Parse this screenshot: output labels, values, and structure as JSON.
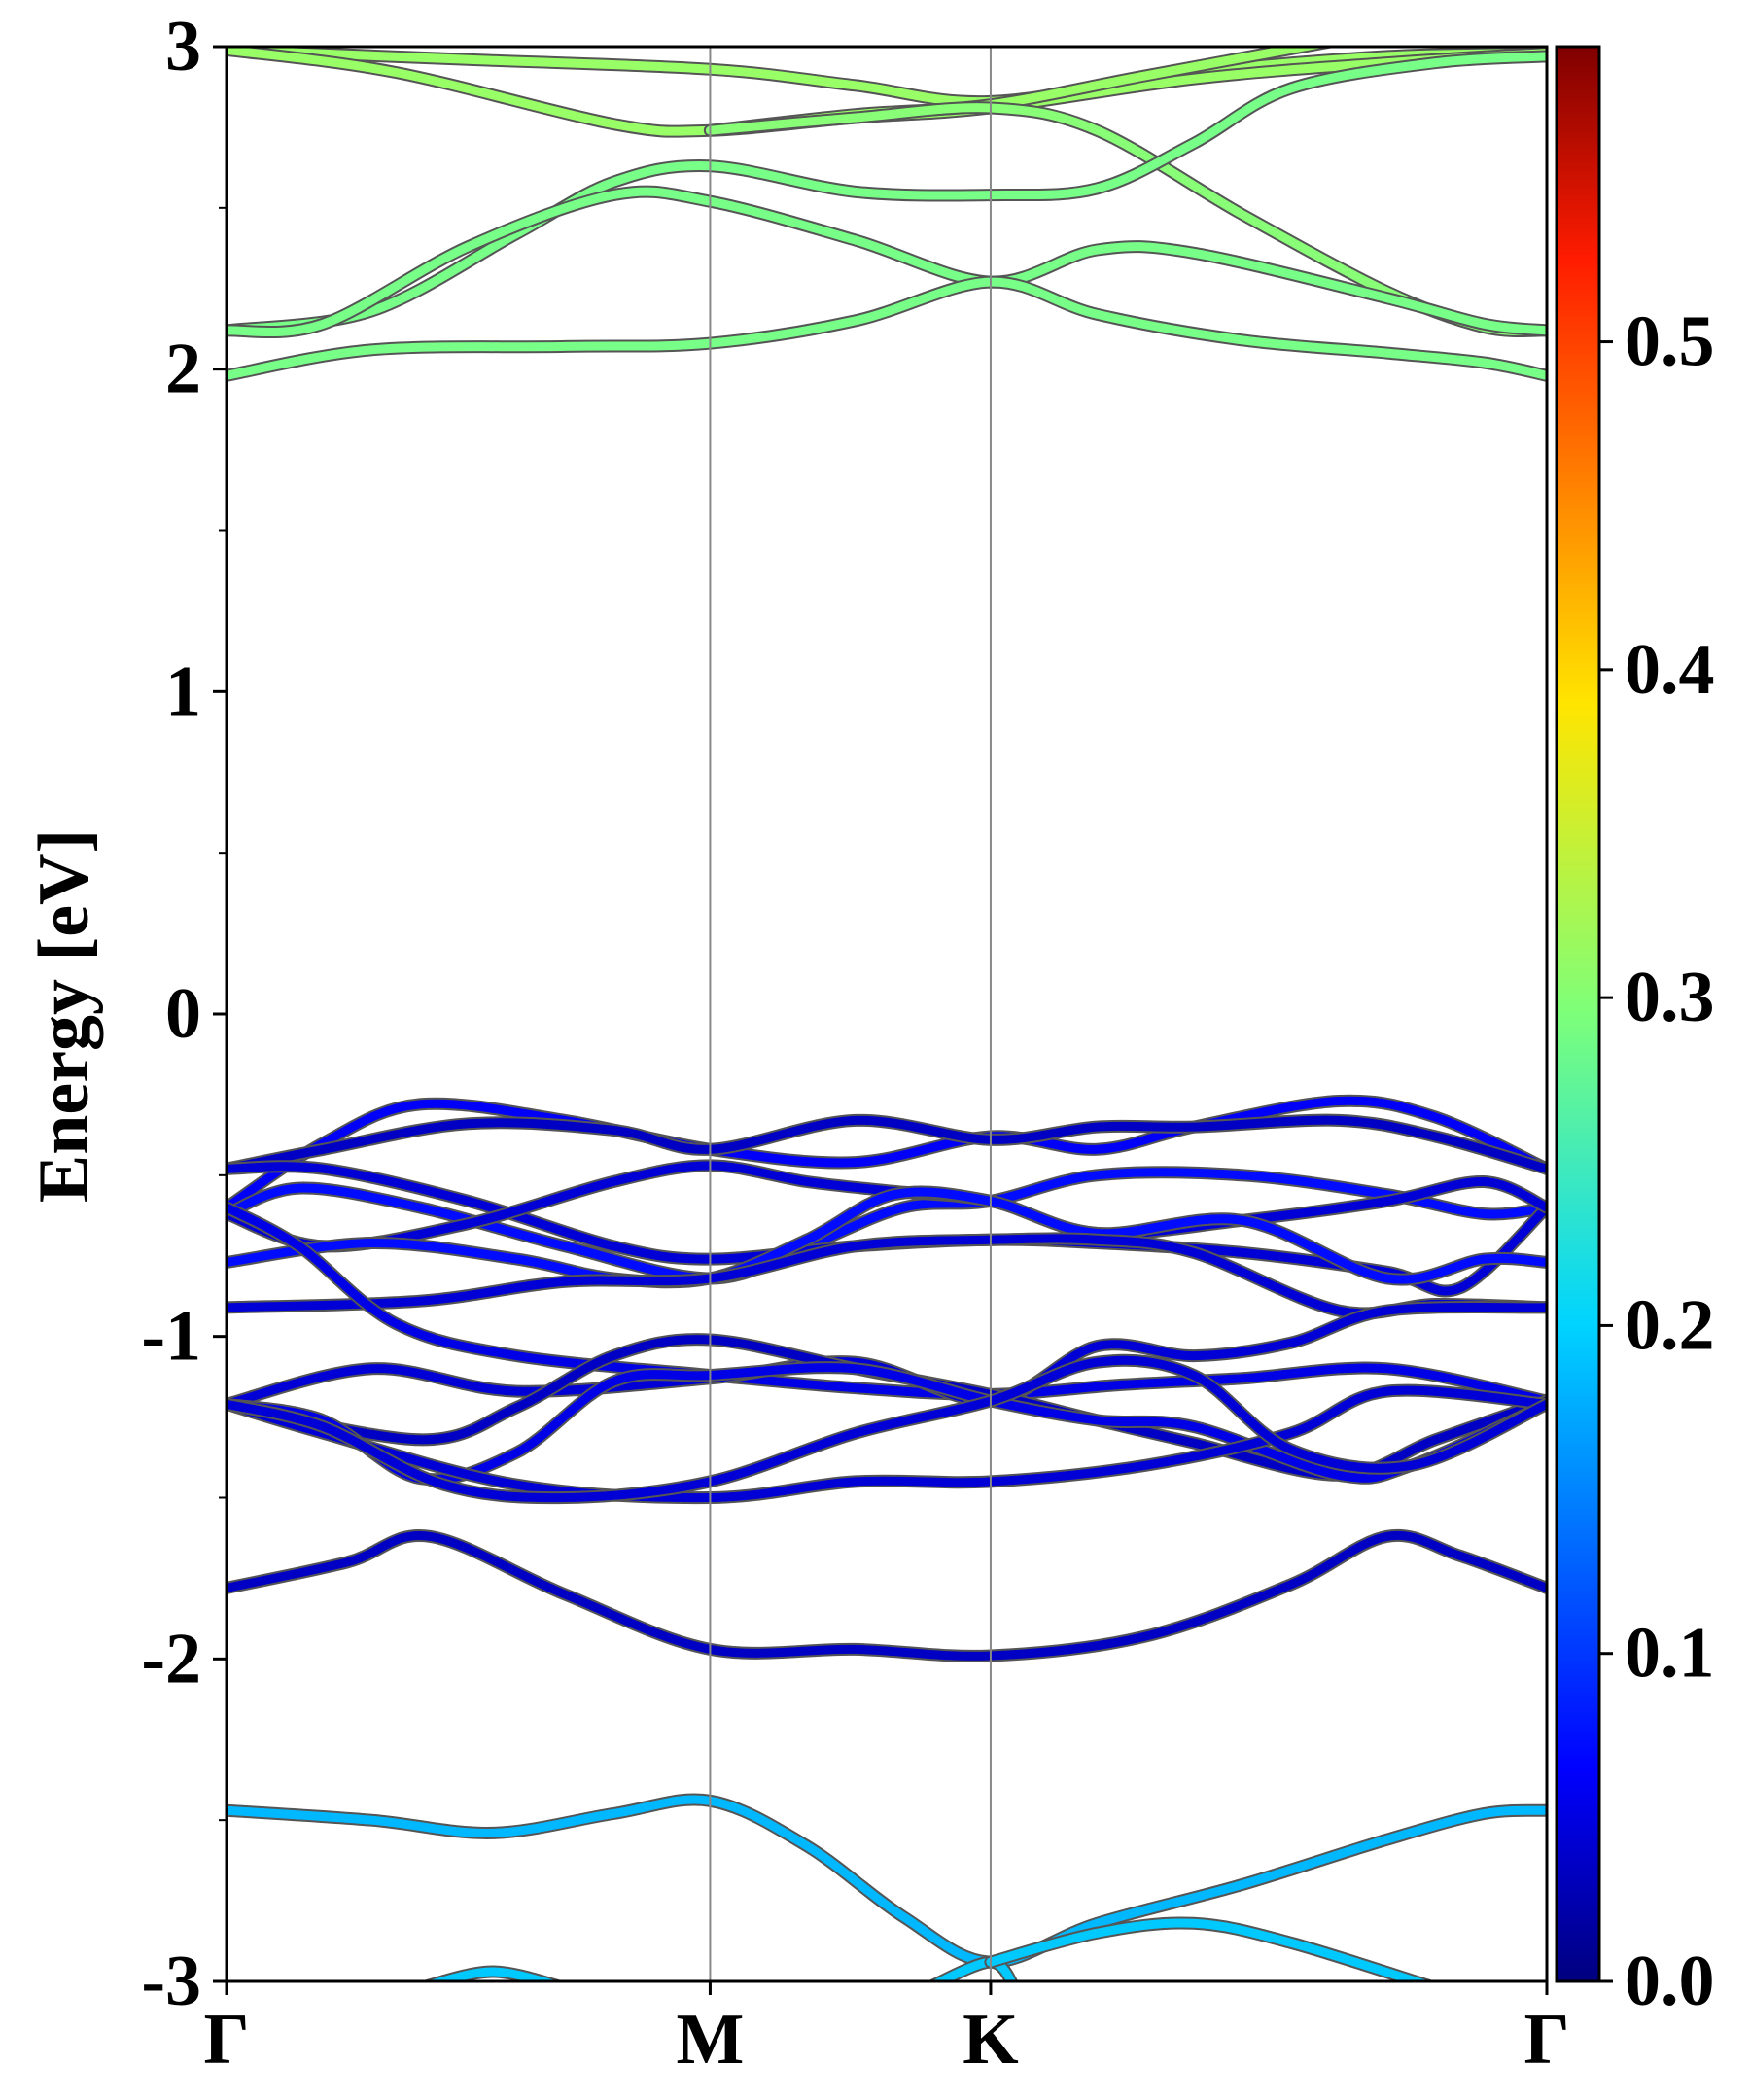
{
  "chart_data": {
    "type": "line",
    "ylabel": "Energy [eV]",
    "ylim": [
      -3,
      3
    ],
    "y_ticks": [
      -3,
      -2,
      -1,
      0,
      1,
      2,
      3
    ],
    "y_tick_labels": [
      "-3",
      "-2",
      "-1",
      "0",
      "1",
      "2",
      "3"
    ],
    "k_path_ticks": [
      {
        "label": "Γ",
        "k": 0.0
      },
      {
        "label": "M",
        "k": 1.0
      },
      {
        "label": "K",
        "k": 1.58
      },
      {
        "label": "Γ",
        "k": 2.73
      }
    ],
    "k_range": [
      0,
      2.73
    ],
    "colorbar": {
      "range": [
        0.0,
        0.59
      ],
      "ticks": [
        0.0,
        0.1,
        0.2,
        0.3,
        0.4,
        0.5
      ],
      "tick_labels": [
        "0.0",
        "0.1",
        "0.2",
        "0.3",
        "0.4",
        "0.5"
      ],
      "colormap": "jet"
    },
    "series": [
      {
        "weight": 0.31,
        "points": [
          [
            0,
            2.99
          ],
          [
            0.5,
            2.96
          ],
          [
            1.0,
            2.93
          ],
          [
            1.3,
            2.88
          ],
          [
            1.58,
            2.83
          ],
          [
            2.0,
            2.92
          ],
          [
            2.4,
            2.97
          ],
          [
            2.73,
            2.98
          ]
        ]
      },
      {
        "weight": 0.31,
        "points": [
          [
            0,
            2.99
          ],
          [
            0.35,
            2.92
          ],
          [
            0.8,
            2.76
          ],
          [
            1.0,
            2.74
          ],
          [
            1.3,
            2.78
          ],
          [
            1.58,
            2.81
          ],
          [
            2.0,
            2.9
          ],
          [
            2.4,
            2.95
          ],
          [
            2.73,
            2.98
          ]
        ]
      },
      {
        "weight": 0.31,
        "points": [
          [
            1.0,
            2.74
          ],
          [
            1.3,
            2.79
          ],
          [
            1.58,
            2.82
          ],
          [
            1.9,
            2.91
          ],
          [
            2.3,
            3.02
          ]
        ]
      },
      {
        "weight": 0.3,
        "points": [
          [
            1.0,
            2.74
          ],
          [
            1.3,
            2.78
          ],
          [
            1.58,
            2.81
          ],
          [
            1.8,
            2.74
          ],
          [
            2.1,
            2.48
          ],
          [
            2.4,
            2.24
          ],
          [
            2.6,
            2.13
          ],
          [
            2.73,
            2.12
          ]
        ]
      },
      {
        "weight": 0.29,
        "points": [
          [
            0,
            2.12
          ],
          [
            0.3,
            2.18
          ],
          [
            0.6,
            2.42
          ],
          [
            0.8,
            2.58
          ],
          [
            1.0,
            2.63
          ],
          [
            1.3,
            2.55
          ],
          [
            1.58,
            2.54
          ],
          [
            1.8,
            2.56
          ],
          [
            2.0,
            2.7
          ],
          [
            2.2,
            2.87
          ],
          [
            2.5,
            2.95
          ],
          [
            2.73,
            2.97
          ]
        ]
      },
      {
        "weight": 0.29,
        "points": [
          [
            0,
            2.12
          ],
          [
            0.2,
            2.14
          ],
          [
            0.5,
            2.38
          ],
          [
            0.8,
            2.54
          ],
          [
            1.0,
            2.52
          ],
          [
            1.3,
            2.4
          ],
          [
            1.58,
            2.27
          ],
          [
            1.8,
            2.37
          ],
          [
            2.0,
            2.36
          ],
          [
            2.4,
            2.22
          ],
          [
            2.6,
            2.14
          ],
          [
            2.73,
            2.12
          ]
        ]
      },
      {
        "weight": 0.29,
        "points": [
          [
            0,
            1.98
          ],
          [
            0.3,
            2.06
          ],
          [
            0.7,
            2.07
          ],
          [
            1.0,
            2.08
          ],
          [
            1.3,
            2.15
          ],
          [
            1.58,
            2.27
          ],
          [
            1.8,
            2.17
          ],
          [
            2.1,
            2.09
          ],
          [
            2.4,
            2.05
          ],
          [
            2.6,
            2.02
          ],
          [
            2.73,
            1.98
          ]
        ]
      },
      {
        "weight": 0.07,
        "points": [
          [
            0,
            -0.6
          ],
          [
            0.2,
            -0.4
          ],
          [
            0.4,
            -0.28
          ],
          [
            0.7,
            -0.33
          ],
          [
            1.0,
            -0.42
          ],
          [
            1.3,
            -0.46
          ],
          [
            1.58,
            -0.38
          ],
          [
            1.8,
            -0.42
          ],
          [
            2.0,
            -0.35
          ],
          [
            2.3,
            -0.27
          ],
          [
            2.5,
            -0.32
          ],
          [
            2.73,
            -0.48
          ]
        ]
      },
      {
        "weight": 0.04,
        "points": [
          [
            0,
            -0.48
          ],
          [
            0.2,
            -0.42
          ],
          [
            0.5,
            -0.34
          ],
          [
            0.8,
            -0.36
          ],
          [
            1.0,
            -0.42
          ],
          [
            1.3,
            -0.33
          ],
          [
            1.58,
            -0.39
          ],
          [
            1.8,
            -0.35
          ],
          [
            2.0,
            -0.35
          ],
          [
            2.3,
            -0.33
          ],
          [
            2.5,
            -0.38
          ],
          [
            2.73,
            -0.48
          ]
        ]
      },
      {
        "weight": 0.08,
        "points": [
          [
            0,
            -0.62
          ],
          [
            0.15,
            -0.54
          ],
          [
            0.4,
            -0.6
          ],
          [
            0.7,
            -0.72
          ],
          [
            1.0,
            -0.82
          ],
          [
            1.2,
            -0.72
          ],
          [
            1.4,
            -0.6
          ],
          [
            1.58,
            -0.58
          ],
          [
            1.8,
            -0.5
          ],
          [
            2.1,
            -0.5
          ],
          [
            2.4,
            -0.56
          ],
          [
            2.6,
            -0.62
          ],
          [
            2.73,
            -0.6
          ]
        ]
      },
      {
        "weight": 0.05,
        "points": [
          [
            0,
            -0.48
          ],
          [
            0.2,
            -0.48
          ],
          [
            0.5,
            -0.58
          ],
          [
            0.8,
            -0.72
          ],
          [
            1.0,
            -0.76
          ],
          [
            1.3,
            -0.72
          ],
          [
            1.58,
            -0.7
          ],
          [
            1.8,
            -0.71
          ],
          [
            2.1,
            -0.74
          ],
          [
            2.4,
            -0.8
          ],
          [
            2.55,
            -0.85
          ],
          [
            2.73,
            -0.6
          ]
        ]
      },
      {
        "weight": 0.05,
        "points": [
          [
            0,
            -0.62
          ],
          [
            0.2,
            -0.72
          ],
          [
            0.5,
            -0.65
          ],
          [
            0.8,
            -0.52
          ],
          [
            1.0,
            -0.47
          ],
          [
            1.2,
            -0.52
          ],
          [
            1.38,
            -0.55
          ],
          [
            1.58,
            -0.58
          ],
          [
            1.8,
            -0.68
          ],
          [
            2.1,
            -0.64
          ],
          [
            2.4,
            -0.58
          ],
          [
            2.6,
            -0.52
          ],
          [
            2.73,
            -0.6
          ]
        ]
      },
      {
        "weight": 0.08,
        "points": [
          [
            0,
            -0.77
          ],
          [
            0.3,
            -0.71
          ],
          [
            0.6,
            -0.76
          ],
          [
            0.8,
            -0.82
          ],
          [
            1.0,
            -0.82
          ],
          [
            1.2,
            -0.7
          ],
          [
            1.38,
            -0.56
          ],
          [
            1.58,
            -0.58
          ],
          [
            1.8,
            -0.68
          ],
          [
            2.1,
            -0.64
          ],
          [
            2.4,
            -0.82
          ],
          [
            2.6,
            -0.76
          ],
          [
            2.73,
            -0.77
          ]
        ]
      },
      {
        "weight": 0.05,
        "points": [
          [
            0,
            -0.91
          ],
          [
            0.4,
            -0.89
          ],
          [
            0.7,
            -0.83
          ],
          [
            1.0,
            -0.82
          ],
          [
            1.3,
            -0.72
          ],
          [
            1.58,
            -0.7
          ],
          [
            1.8,
            -0.7
          ],
          [
            2.0,
            -0.74
          ],
          [
            2.3,
            -0.92
          ],
          [
            2.5,
            -0.9
          ],
          [
            2.73,
            -0.91
          ]
        ]
      },
      {
        "weight": 0.06,
        "points": [
          [
            0,
            -0.6
          ],
          [
            0.15,
            -0.72
          ],
          [
            0.35,
            -0.96
          ],
          [
            0.6,
            -1.06
          ],
          [
            1.0,
            -1.12
          ],
          [
            1.3,
            -1.16
          ],
          [
            1.58,
            -1.18
          ],
          [
            1.85,
            -1.15
          ],
          [
            2.1,
            -1.13
          ],
          [
            2.4,
            -1.1
          ],
          [
            2.73,
            -1.2
          ]
        ]
      },
      {
        "weight": 0.05,
        "points": [
          [
            0,
            -1.21
          ],
          [
            0.3,
            -1.1
          ],
          [
            0.6,
            -1.17
          ],
          [
            1.0,
            -1.13
          ],
          [
            1.3,
            -1.08
          ],
          [
            1.58,
            -1.2
          ],
          [
            1.8,
            -1.03
          ],
          [
            2.0,
            -1.06
          ],
          [
            2.2,
            -1.02
          ],
          [
            2.4,
            -0.92
          ],
          [
            2.73,
            -0.91
          ]
        ]
      },
      {
        "weight": 0.04,
        "points": [
          [
            0,
            -1.21
          ],
          [
            0.4,
            -1.32
          ],
          [
            0.6,
            -1.22
          ],
          [
            0.8,
            -1.06
          ],
          [
            1.0,
            -1.01
          ],
          [
            1.3,
            -1.1
          ],
          [
            1.58,
            -1.18
          ],
          [
            1.8,
            -1.26
          ],
          [
            2.0,
            -1.33
          ],
          [
            2.3,
            -1.43
          ],
          [
            2.5,
            -1.32
          ],
          [
            2.73,
            -1.2
          ]
        ]
      },
      {
        "weight": 0.06,
        "points": [
          [
            0,
            -1.21
          ],
          [
            0.2,
            -1.26
          ],
          [
            0.4,
            -1.44
          ],
          [
            0.6,
            -1.36
          ],
          [
            0.8,
            -1.14
          ],
          [
            1.0,
            -1.12
          ],
          [
            1.3,
            -1.1
          ],
          [
            1.58,
            -1.2
          ],
          [
            1.8,
            -1.26
          ],
          [
            2.0,
            -1.28
          ],
          [
            2.3,
            -1.43
          ],
          [
            2.45,
            -1.4
          ],
          [
            2.73,
            -1.21
          ]
        ]
      },
      {
        "weight": 0.05,
        "points": [
          [
            0,
            -1.21
          ],
          [
            0.2,
            -1.3
          ],
          [
            0.6,
            -1.46
          ],
          [
            1.0,
            -1.5
          ],
          [
            1.3,
            -1.45
          ],
          [
            1.58,
            -1.45
          ],
          [
            1.9,
            -1.4
          ],
          [
            2.2,
            -1.3
          ],
          [
            2.4,
            -1.17
          ],
          [
            2.73,
            -1.21
          ]
        ]
      },
      {
        "weight": 0.05,
        "points": [
          [
            0,
            -1.21
          ],
          [
            0.2,
            -1.28
          ],
          [
            0.45,
            -1.46
          ],
          [
            0.7,
            -1.5
          ],
          [
            1.0,
            -1.45
          ],
          [
            1.3,
            -1.3
          ],
          [
            1.58,
            -1.2
          ],
          [
            1.8,
            -1.08
          ],
          [
            2.0,
            -1.12
          ],
          [
            2.2,
            -1.35
          ],
          [
            2.45,
            -1.4
          ],
          [
            2.73,
            -1.21
          ]
        ]
      },
      {
        "weight": 0.04,
        "points": [
          [
            0,
            -1.78
          ],
          [
            0.25,
            -1.7
          ],
          [
            0.42,
            -1.62
          ],
          [
            0.7,
            -1.8
          ],
          [
            1.0,
            -1.97
          ],
          [
            1.3,
            -1.97
          ],
          [
            1.58,
            -1.99
          ],
          [
            1.9,
            -1.93
          ],
          [
            2.2,
            -1.77
          ],
          [
            2.4,
            -1.62
          ],
          [
            2.55,
            -1.68
          ],
          [
            2.73,
            -1.78
          ]
        ]
      },
      {
        "weight": 0.18,
        "points": [
          [
            0,
            -2.47
          ],
          [
            0.3,
            -2.5
          ],
          [
            0.55,
            -2.54
          ],
          [
            0.8,
            -2.48
          ],
          [
            1.0,
            -2.44
          ],
          [
            1.2,
            -2.58
          ],
          [
            1.4,
            -2.8
          ],
          [
            1.58,
            -2.94
          ],
          [
            1.8,
            -2.82
          ],
          [
            2.1,
            -2.7
          ],
          [
            2.4,
            -2.56
          ],
          [
            2.6,
            -2.48
          ],
          [
            2.73,
            -2.47
          ]
        ]
      },
      {
        "weight": 0.19,
        "points": [
          [
            0.4,
            -3.02
          ],
          [
            0.55,
            -2.97
          ],
          [
            0.7,
            -3.02
          ]
        ]
      },
      {
        "weight": 0.19,
        "points": [
          [
            1.45,
            -3.02
          ],
          [
            1.58,
            -2.94
          ],
          [
            1.63,
            -3.02
          ]
        ]
      },
      {
        "weight": 0.19,
        "points": [
          [
            1.58,
            -2.94
          ],
          [
            1.8,
            -2.85
          ],
          [
            2.0,
            -2.82
          ],
          [
            2.2,
            -2.88
          ],
          [
            2.5,
            -3.02
          ]
        ]
      }
    ]
  }
}
